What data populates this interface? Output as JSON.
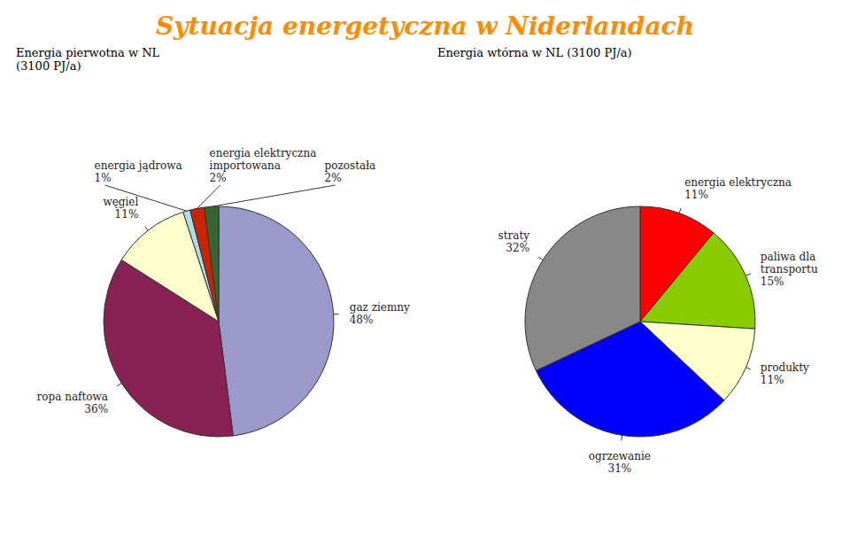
{
  "title": "Sytuacja energetyczna w Niderlandach",
  "color": "#FF8C00",
  "chart_data": [
    {
      "type": "pie",
      "title": "Energia pierwotna w NL\n(3100 PJ/a)",
      "categories": [
        "gaz ziemny",
        "ropa naftowa",
        "węgiel",
        "energia jądrowa",
        "energia elektryczna\nimportowana",
        "pozostała"
      ],
      "values": [
        48,
        36,
        11,
        1,
        2,
        2
      ],
      "value_labels": [
        "48%",
        "36%",
        "11%",
        "1%",
        "2%",
        "2%"
      ],
      "colors": [
        "#9999CC",
        "#882255",
        "#FFFFCC",
        "#AADDEE",
        "#CC2200",
        "#336633"
      ],
      "data_labels": true
    },
    {
      "type": "pie",
      "title": "Energia wtórna w NL (3100 PJ/a)",
      "categories": [
        "energia elektryczna",
        "paliwa dla\ntransportu",
        "produkty",
        "ogrzewanie",
        "straty"
      ],
      "values": [
        11,
        15,
        11,
        31,
        32
      ],
      "value_labels": [
        "11%",
        "15%",
        "11%",
        "31%",
        "32%"
      ],
      "colors": [
        "#FF0000",
        "#88CC00",
        "#FFFFCC",
        "#0000FF",
        "#888888"
      ],
      "data_labels": true
    }
  ]
}
